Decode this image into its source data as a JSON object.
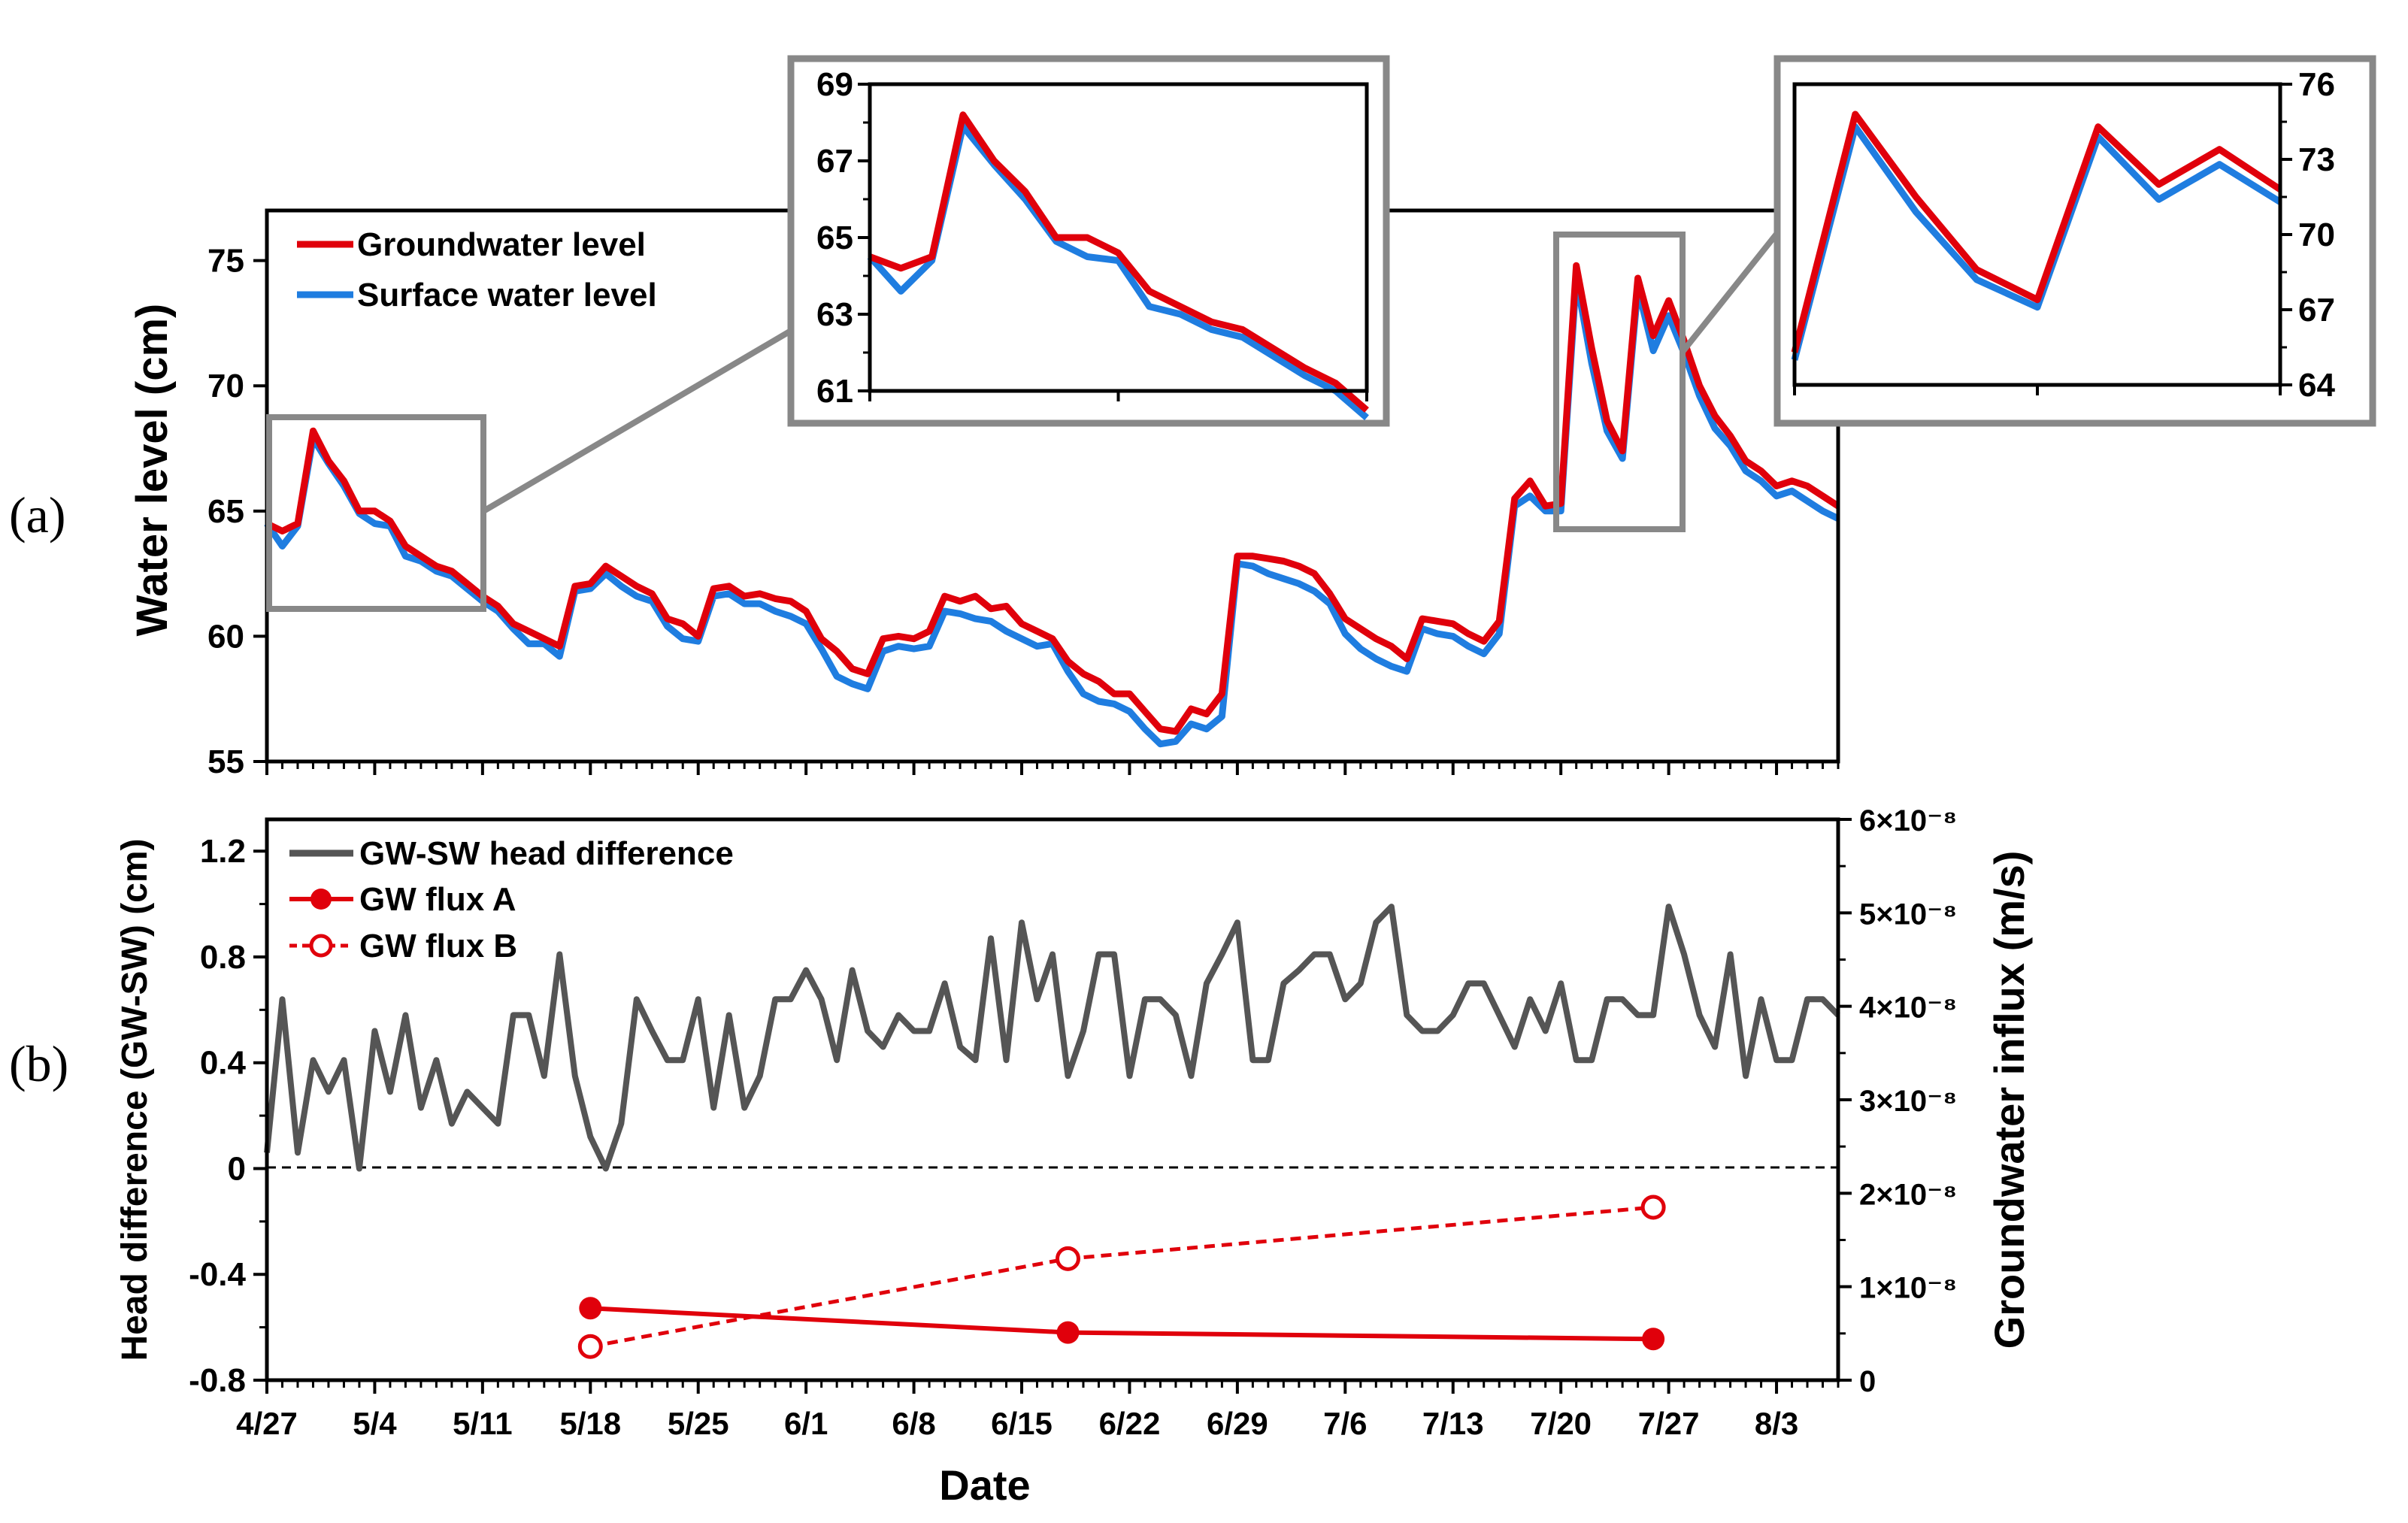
{
  "panels": {
    "a": "(a)",
    "b": "(b)"
  },
  "colors": {
    "gw": "#e0000b",
    "sw": "#1f7de0",
    "hd": "#555555",
    "flux": "#e0000b",
    "box": "#888888"
  },
  "chart_data": [
    {
      "type": "line",
      "title": "",
      "ylabel": "Water level (cm)",
      "ylim": [
        55,
        77
      ],
      "yticks": [
        "55",
        "60",
        "65",
        "70",
        "75"
      ],
      "legend": [
        "Groundwater level",
        "Surface water level"
      ],
      "legend_position": "top-left",
      "x": [
        0,
        1,
        2,
        3,
        4,
        5,
        6,
        7,
        8,
        9,
        10,
        11,
        12,
        13,
        14,
        15,
        16,
        17,
        18,
        19,
        20,
        21,
        22,
        23,
        24,
        25,
        26,
        27,
        28,
        29,
        30,
        31,
        32,
        33,
        34,
        35,
        36,
        37,
        38,
        39,
        40,
        41,
        42,
        43,
        44,
        45,
        46,
        47,
        48,
        49,
        50,
        51,
        52,
        53,
        54,
        55,
        56,
        57,
        58,
        59,
        60,
        61,
        62,
        63,
        64,
        65,
        66,
        67,
        68,
        69,
        70,
        71,
        72,
        73,
        74,
        75,
        76,
        77,
        78,
        79,
        80,
        81,
        82,
        83,
        84,
        85,
        86,
        87,
        88,
        89,
        90,
        91,
        92,
        93,
        94,
        95,
        96,
        97,
        98,
        99,
        100,
        101,
        102
      ],
      "series": [
        {
          "name": "Groundwater level",
          "values": [
            64.5,
            64.2,
            64.5,
            68.2,
            67.0,
            66.2,
            65.0,
            65.0,
            64.6,
            63.6,
            63.2,
            62.8,
            62.6,
            62.1,
            61.6,
            61.2,
            60.5,
            60.2,
            59.9,
            59.6,
            62.0,
            62.1,
            62.8,
            62.4,
            62.0,
            61.7,
            60.7,
            60.5,
            60.0,
            61.9,
            62.0,
            61.6,
            61.7,
            61.5,
            61.4,
            61.0,
            59.9,
            59.4,
            58.7,
            58.5,
            59.9,
            60.0,
            59.9,
            60.2,
            61.6,
            61.4,
            61.6,
            61.1,
            61.2,
            60.5,
            60.2,
            59.9,
            59.0,
            58.5,
            58.2,
            57.7,
            57.7,
            57.0,
            56.3,
            56.2,
            57.1,
            56.9,
            57.7,
            63.2,
            63.2,
            63.1,
            63.0,
            62.8,
            62.5,
            61.7,
            60.7,
            60.3,
            59.9,
            59.6,
            59.1,
            60.7,
            60.6,
            60.5,
            60.1,
            59.8,
            60.6,
            65.5,
            66.2,
            65.2,
            65.3,
            74.8,
            71.5,
            68.6,
            67.4,
            74.3,
            72.0,
            73.4,
            71.8,
            70.0,
            68.8,
            68.0,
            67.0,
            66.6,
            66.0,
            66.2,
            66.0,
            65.6,
            65.2
          ]
        },
        {
          "name": "Surface water level",
          "values": [
            64.5,
            63.6,
            64.4,
            67.9,
            66.9,
            66.0,
            64.9,
            64.5,
            64.4,
            63.2,
            63.0,
            62.6,
            62.4,
            61.9,
            61.4,
            61.0,
            60.3,
            59.7,
            59.7,
            59.2,
            61.8,
            61.9,
            62.5,
            62.0,
            61.6,
            61.4,
            60.4,
            59.9,
            59.8,
            61.6,
            61.7,
            61.3,
            61.3,
            61.0,
            60.8,
            60.5,
            59.5,
            58.4,
            58.1,
            57.9,
            59.4,
            59.6,
            59.5,
            59.6,
            61.0,
            60.9,
            60.7,
            60.6,
            60.2,
            59.9,
            59.6,
            59.7,
            58.6,
            57.7,
            57.4,
            57.3,
            57.0,
            56.3,
            55.7,
            55.8,
            56.5,
            56.3,
            56.8,
            62.9,
            62.8,
            62.5,
            62.3,
            62.1,
            61.8,
            61.3,
            60.1,
            59.5,
            59.1,
            58.8,
            58.6,
            60.3,
            60.1,
            60.0,
            59.6,
            59.3,
            60.1,
            65.2,
            65.6,
            65.0,
            65.0,
            74.3,
            70.9,
            68.2,
            67.1,
            73.9,
            71.4,
            72.8,
            71.3,
            69.6,
            68.3,
            67.6,
            66.6,
            66.2,
            65.6,
            65.8,
            65.4,
            65.0,
            64.7
          ]
        }
      ],
      "insets": [
        {
          "ylim": [
            61,
            69
          ],
          "yticks": [
            "61",
            "63",
            "65",
            "67",
            "69"
          ],
          "x_range": [
            0,
            16
          ]
        },
        {
          "ylim": [
            64,
            76
          ],
          "yticks": [
            "64",
            "67",
            "70",
            "73",
            "76"
          ],
          "x_range": [
            84,
            92
          ]
        }
      ]
    },
    {
      "type": "line",
      "title": "",
      "xlabel": "Date",
      "ylabel": "Head difference (GW-SW)  (cm)",
      "ylabel_right": "Groundwater influx  (m/s)",
      "ylim": [
        -0.8,
        1.32
      ],
      "ylim_right": [
        0,
        6e-08
      ],
      "yticks": [
        "-0.8",
        "-0.4",
        "0",
        "0.4",
        "0.8",
        "1.2"
      ],
      "yticks_right": [
        "0",
        "1×10⁻⁸",
        "2×10⁻⁸",
        "3×10⁻⁸",
        "4×10⁻⁸",
        "5×10⁻⁸",
        "6×10⁻⁸"
      ],
      "xticks": [
        "4/27",
        "5/4",
        "5/11",
        "5/18",
        "5/25",
        "6/1",
        "6/8",
        "6/15",
        "6/22",
        "6/29",
        "7/6",
        "7/13",
        "7/20",
        "7/27",
        "8/3"
      ],
      "legend": [
        "GW-SW head difference",
        "GW flux A",
        "GW flux B"
      ],
      "legend_position": "top-left",
      "head_difference": {
        "name": "GW-SW head difference",
        "x": [
          0,
          1,
          2,
          3,
          4,
          5,
          6,
          7,
          8,
          9,
          10,
          11,
          12,
          13,
          14,
          15,
          16,
          17,
          18,
          19,
          20,
          21,
          22,
          23,
          24,
          25,
          26,
          27,
          28,
          29,
          30,
          31,
          32,
          33,
          34,
          35,
          36,
          37,
          38,
          39,
          40,
          41,
          42,
          43,
          44,
          45,
          46,
          47,
          48,
          49,
          50,
          51,
          52,
          53,
          54,
          55,
          56,
          57,
          58,
          59,
          60,
          61,
          62,
          63,
          64,
          65,
          66,
          67,
          68,
          69,
          70,
          71,
          72,
          73,
          74,
          75,
          76,
          77,
          78,
          79,
          80,
          81,
          82,
          83,
          84,
          85,
          86,
          87,
          88,
          89,
          90,
          91,
          92,
          93,
          94,
          95,
          96,
          97,
          98,
          99,
          100,
          101,
          102
        ],
        "values": [
          0.06,
          0.64,
          0.06,
          0.41,
          0.29,
          0.41,
          0.0,
          0.52,
          0.29,
          0.58,
          0.23,
          0.41,
          0.17,
          0.29,
          0.23,
          0.17,
          0.58,
          0.58,
          0.35,
          0.81,
          0.35,
          0.12,
          0.0,
          0.17,
          0.64,
          0.52,
          0.41,
          0.41,
          0.64,
          0.23,
          0.58,
          0.23,
          0.35,
          0.64,
          0.64,
          0.75,
          0.64,
          0.41,
          0.75,
          0.52,
          0.46,
          0.58,
          0.52,
          0.52,
          0.7,
          0.46,
          0.41,
          0.87,
          0.41,
          0.93,
          0.64,
          0.81,
          0.35,
          0.52,
          0.81,
          0.81,
          0.35,
          0.64,
          0.64,
          0.58,
          0.35,
          0.7,
          0.81,
          0.93,
          0.41,
          0.41,
          0.7,
          0.75,
          0.81,
          0.81,
          0.64,
          0.7,
          0.93,
          0.99,
          0.58,
          0.52,
          0.52,
          0.58,
          0.7,
          0.7,
          0.58,
          0.46,
          0.64,
          0.52,
          0.7,
          0.41,
          0.41,
          0.64,
          0.64,
          0.58,
          0.58,
          0.99,
          0.81,
          0.58,
          0.46,
          0.81,
          0.35,
          0.64,
          0.41,
          0.41,
          0.64,
          0.64,
          0.58
        ]
      },
      "flux_a": {
        "name": "GW flux A",
        "x": [
          21,
          52,
          90
        ],
        "values": [
          7.7e-09,
          5.1e-09,
          4.4e-09
        ]
      },
      "flux_b": {
        "name": "GW flux B",
        "x": [
          21,
          52,
          90
        ],
        "values": [
          3.6e-09,
          1.3e-08,
          1.85e-08
        ]
      }
    }
  ]
}
